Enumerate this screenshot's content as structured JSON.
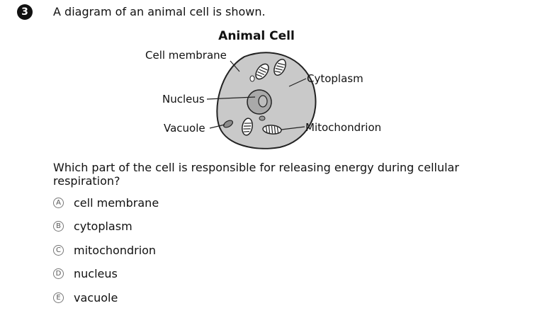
{
  "question": {
    "number": "3",
    "stem": "A diagram of an animal cell is shown.",
    "prompt": "Which part of the cell is responsible for releasing energy during cellular respiration?"
  },
  "diagram": {
    "title": "Animal Cell",
    "labels": {
      "cell_membrane": "Cell membrane",
      "nucleus": "Nucleus",
      "vacuole": "Vacuole",
      "cytoplasm": "Cytoplasm",
      "mitochondrion": "Mitochondrion"
    }
  },
  "choices": [
    {
      "letter": "A",
      "text": "cell membrane"
    },
    {
      "letter": "B",
      "text": "cytoplasm"
    },
    {
      "letter": "C",
      "text": "mitochondrion"
    },
    {
      "letter": "D",
      "text": "nucleus"
    },
    {
      "letter": "E",
      "text": "vacuole"
    }
  ]
}
